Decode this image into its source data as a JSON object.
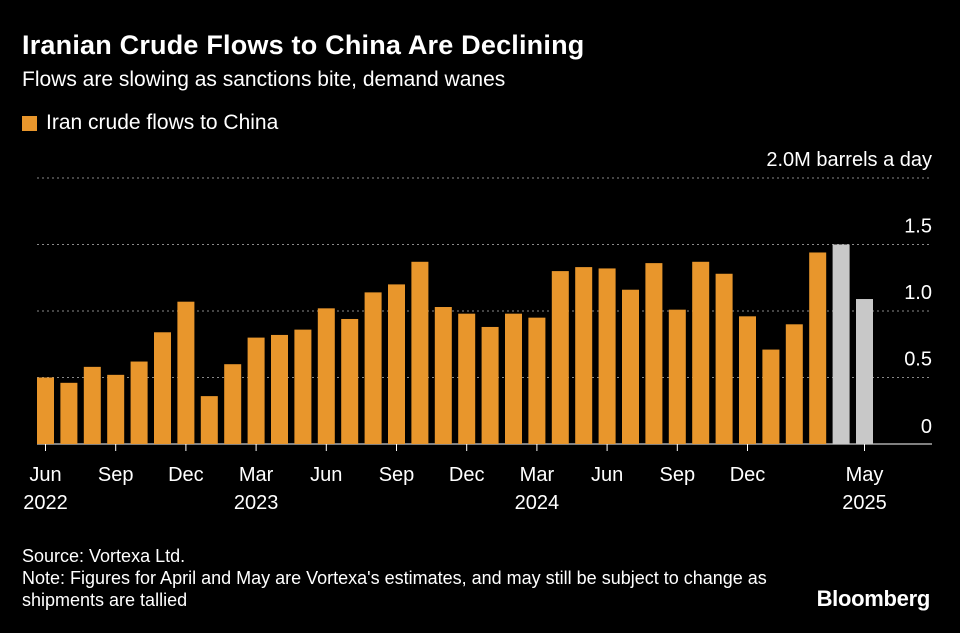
{
  "title": "Iranian Crude Flows to China Are Declining",
  "subtitle": "Flows are slowing as sanctions bite, demand wanes",
  "colors": {
    "bar": "#e8962c",
    "estimate": "#c8c8c8",
    "grid": "#8a8a8a",
    "background": "#000000"
  },
  "chart_data": {
    "type": "bar",
    "unit_label": "2.0M barrels a day",
    "ylim": [
      0,
      2.0
    ],
    "yticks": [
      {
        "value": 2.0,
        "label": "2.0M barrels a day"
      },
      {
        "value": 1.5,
        "label": "1.5"
      },
      {
        "value": 1.0,
        "label": "1.0"
      },
      {
        "value": 0.5,
        "label": "0.5"
      },
      {
        "value": 0,
        "label": "0"
      }
    ],
    "xticks": [
      {
        "index": 0,
        "month": "Jun",
        "year": "2022"
      },
      {
        "index": 3,
        "month": "Sep",
        "year": ""
      },
      {
        "index": 6,
        "month": "Dec",
        "year": ""
      },
      {
        "index": 9,
        "month": "Mar",
        "year": "2023"
      },
      {
        "index": 12,
        "month": "Jun",
        "year": ""
      },
      {
        "index": 15,
        "month": "Sep",
        "year": ""
      },
      {
        "index": 18,
        "month": "Dec",
        "year": ""
      },
      {
        "index": 21,
        "month": "Mar",
        "year": "2024"
      },
      {
        "index": 24,
        "month": "Jun",
        "year": ""
      },
      {
        "index": 27,
        "month": "Sep",
        "year": ""
      },
      {
        "index": 30,
        "month": "Dec",
        "year": ""
      },
      {
        "index": 35,
        "month": "May",
        "year": "2025"
      }
    ],
    "grid": true,
    "legend_position": "top-left",
    "series": [
      {
        "name": "Iran crude flows to China",
        "categories": [
          "Jun 2022",
          "Jul 2022",
          "Aug 2022",
          "Sep 2022",
          "Oct 2022",
          "Nov 2022",
          "Dec 2022",
          "Jan 2023",
          "Feb 2023",
          "Mar 2023",
          "Apr 2023",
          "May 2023",
          "Jun 2023",
          "Jul 2023",
          "Aug 2023",
          "Sep 2023",
          "Oct 2023",
          "Nov 2023",
          "Dec 2023",
          "Jan 2024",
          "Feb 2024",
          "Mar 2024",
          "Apr 2024",
          "May 2024",
          "Jun 2024",
          "Jul 2024",
          "Aug 2024",
          "Sep 2024",
          "Oct 2024",
          "Nov 2024",
          "Dec 2024",
          "Jan 2025",
          "Feb 2025",
          "Mar 2025",
          "Apr 2025",
          "May 2025"
        ],
        "values": [
          0.5,
          0.46,
          0.58,
          0.52,
          0.62,
          0.84,
          1.07,
          0.36,
          0.6,
          0.8,
          0.82,
          0.86,
          1.02,
          0.94,
          1.14,
          1.2,
          1.37,
          1.03,
          0.98,
          0.88,
          0.98,
          0.95,
          1.3,
          1.33,
          1.32,
          1.16,
          1.36,
          1.01,
          1.37,
          1.28,
          0.96,
          0.71,
          0.9,
          1.44,
          1.5,
          1.09
        ],
        "estimated": [
          false,
          false,
          false,
          false,
          false,
          false,
          false,
          false,
          false,
          false,
          false,
          false,
          false,
          false,
          false,
          false,
          false,
          false,
          false,
          false,
          false,
          false,
          false,
          false,
          false,
          false,
          false,
          false,
          false,
          false,
          false,
          false,
          false,
          false,
          true,
          true
        ]
      }
    ]
  },
  "footer": {
    "source": "Source: Vortexa Ltd.",
    "note": "Note: Figures for April and May are Vortexa's estimates, and may still be subject to change as shipments are tallied",
    "brand": "Bloomberg"
  }
}
